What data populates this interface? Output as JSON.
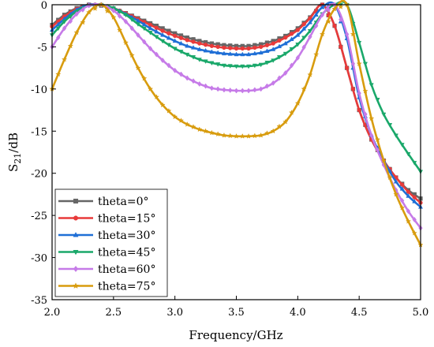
{
  "chart_data": {
    "type": "line",
    "title": "",
    "xlabel": "Frequency/GHz",
    "ylabel_main": "S",
    "ylabel_sub": "21",
    "ylabel_unit": "/dB",
    "xlim": [
      2.0,
      5.0
    ],
    "ylim": [
      -35,
      0
    ],
    "xticks": [
      2.0,
      2.5,
      3.0,
      3.5,
      4.0,
      4.5,
      5.0
    ],
    "xtick_labels": [
      "2.0",
      "2.5",
      "3.0",
      "3.5",
      "4.0",
      "4.5",
      "5.0"
    ],
    "yticks": [
      0,
      -5,
      -10,
      -15,
      -20,
      -25,
      -30,
      -35
    ],
    "ytick_labels": [
      "0",
      "-5",
      "-10",
      "-15",
      "-20",
      "-25",
      "-30",
      "-35"
    ],
    "grid": false,
    "legend_position": "bottom-left",
    "x": [
      2.0,
      2.1,
      2.2,
      2.3,
      2.4,
      2.5,
      2.6,
      2.7,
      2.8,
      2.9,
      3.0,
      3.1,
      3.2,
      3.3,
      3.4,
      3.5,
      3.6,
      3.7,
      3.8,
      3.9,
      4.0,
      4.1,
      4.2,
      4.3,
      4.4,
      4.5,
      4.6,
      4.7,
      4.8,
      4.9,
      5.0
    ],
    "series": [
      {
        "name": "theta=0°",
        "color": "#666666",
        "marker": "square",
        "values": [
          -2.4,
          -1.2,
          -0.4,
          0,
          -0.1,
          -0.5,
          -1.0,
          -1.6,
          -2.2,
          -2.8,
          -3.4,
          -3.9,
          -4.3,
          -4.6,
          -4.8,
          -4.9,
          -4.9,
          -4.7,
          -4.3,
          -3.7,
          -2.8,
          -1.5,
          0,
          -2.5,
          -7.5,
          -12.5,
          -16.0,
          -18.5,
          -20.5,
          -22.0,
          -23.0
        ]
      },
      {
        "name": "theta=15°",
        "color": "#e83a3a",
        "marker": "circle",
        "values": [
          -2.6,
          -1.4,
          -0.5,
          0,
          0,
          -0.4,
          -1.0,
          -1.7,
          -2.4,
          -3.1,
          -3.7,
          -4.2,
          -4.6,
          -4.9,
          -5.1,
          -5.2,
          -5.2,
          -5.0,
          -4.6,
          -3.9,
          -3.0,
          -1.6,
          0,
          -2.5,
          -7.5,
          -12.5,
          -16.0,
          -18.5,
          -20.5,
          -22.2,
          -23.5
        ]
      },
      {
        "name": "theta=30°",
        "color": "#1f6fd6",
        "marker": "triangle-up",
        "values": [
          -3.0,
          -1.7,
          -0.6,
          0,
          0,
          -0.4,
          -1.1,
          -1.9,
          -2.8,
          -3.6,
          -4.3,
          -4.9,
          -5.3,
          -5.6,
          -5.8,
          -5.9,
          -5.9,
          -5.7,
          -5.3,
          -4.6,
          -3.6,
          -2.1,
          -0.3,
          0,
          -4.0,
          -11.0,
          -15.5,
          -18.5,
          -21.0,
          -22.7,
          -24.0
        ]
      },
      {
        "name": "theta=45°",
        "color": "#1aa86a",
        "marker": "triangle-down",
        "values": [
          -3.6,
          -2.0,
          -0.8,
          -0.1,
          0,
          -0.4,
          -1.2,
          -2.3,
          -3.3,
          -4.3,
          -5.2,
          -5.9,
          -6.5,
          -6.9,
          -7.2,
          -7.3,
          -7.3,
          -7.1,
          -6.6,
          -5.8,
          -4.7,
          -3.1,
          -1.1,
          0,
          0,
          -4.5,
          -9.5,
          -13.0,
          -15.5,
          -17.7,
          -19.8
        ]
      },
      {
        "name": "theta=60°",
        "color": "#c67be8",
        "marker": "diamond",
        "values": [
          -5.0,
          -2.8,
          -1.1,
          -0.1,
          0,
          -0.7,
          -2.0,
          -3.6,
          -5.2,
          -6.6,
          -7.8,
          -8.7,
          -9.4,
          -9.9,
          -10.1,
          -10.2,
          -10.2,
          -10.0,
          -9.3,
          -8.1,
          -6.3,
          -3.8,
          -1.2,
          0,
          -3.5,
          -10.5,
          -15.5,
          -19.0,
          -22.0,
          -24.5,
          -26.5
        ]
      },
      {
        "name": "theta=75°",
        "color": "#d89c0e",
        "marker": "star",
        "values": [
          -10.0,
          -6.5,
          -3.3,
          -0.9,
          0,
          -1.5,
          -4.5,
          -7.5,
          -10.0,
          -11.9,
          -13.3,
          -14.2,
          -14.8,
          -15.2,
          -15.5,
          -15.6,
          -15.6,
          -15.5,
          -15.0,
          -13.9,
          -11.7,
          -8.3,
          -3.5,
          -0.5,
          0,
          -7.0,
          -13.5,
          -18.5,
          -22.5,
          -25.7,
          -28.5
        ]
      }
    ]
  }
}
